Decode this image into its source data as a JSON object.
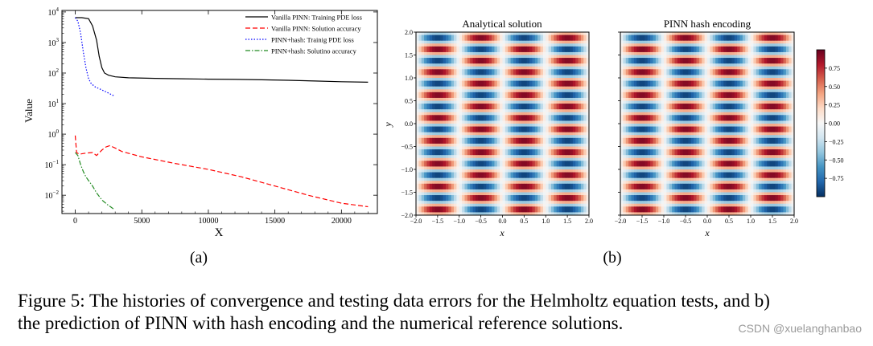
{
  "chart_data": [
    {
      "type": "line",
      "panel": "(a)",
      "xlabel": "X",
      "ylabel": "Value",
      "yscale": "log",
      "xlim": [
        -1000,
        22700
      ],
      "ylim_exponents": [
        -2.6,
        4.05
      ],
      "x_ticks": [
        0,
        5000,
        10000,
        15000,
        20000
      ],
      "x_tick_labels": [
        "0",
        "5000",
        "10000",
        "15000",
        "20000"
      ],
      "y_tick_exponents": [
        -2,
        -1,
        0,
        1,
        2,
        3,
        4
      ],
      "legend_position": "top-right",
      "series": [
        {
          "name": "Vanilla PINN: Training PDE loss",
          "color": "#000000",
          "style": "solid",
          "x": [
            0,
            500,
            1000,
            1300,
            1600,
            1800,
            2000,
            2200,
            2500,
            3000,
            4000,
            6000,
            8000,
            10000,
            12000,
            14000,
            16000,
            18000,
            20000,
            22000
          ],
          "y": [
            6500,
            6500,
            6000,
            3500,
            1200,
            350,
            150,
            100,
            85,
            75,
            70,
            67,
            65,
            63,
            62,
            60,
            58,
            55,
            52,
            50
          ]
        },
        {
          "name": "Vanilla PINN: Solution accuracy",
          "color": "#ff0000",
          "style": "dashed",
          "x": [
            0,
            100,
            300,
            800,
            1300,
            1600,
            2000,
            2300,
            2600,
            3000,
            3500,
            5000,
            7500,
            10000,
            12500,
            15000,
            17500,
            20000,
            22000
          ],
          "y": [
            0.9,
            0.25,
            0.22,
            0.24,
            0.25,
            0.2,
            0.3,
            0.38,
            0.42,
            0.35,
            0.27,
            0.18,
            0.11,
            0.07,
            0.04,
            0.02,
            0.01,
            0.0055,
            0.0042
          ]
        },
        {
          "name": "PINN+hash: Trainig PDE loss",
          "color": "#0000ff",
          "style": "dotted",
          "x": [
            0,
            200,
            400,
            600,
            800,
            1000,
            1200,
            1500,
            2000,
            2500,
            2900
          ],
          "y": [
            6500,
            5000,
            2000,
            500,
            150,
            65,
            45,
            35,
            28,
            22,
            18
          ]
        },
        {
          "name": "PINN+hash: Solutino accuracy",
          "color": "#228b22",
          "style": "dashdot",
          "x": [
            0,
            200,
            400,
            600,
            800,
            1000,
            1300,
            1600,
            2000,
            2400,
            2900
          ],
          "y": [
            0.25,
            0.2,
            0.1,
            0.06,
            0.04,
            0.03,
            0.02,
            0.012,
            0.007,
            0.005,
            0.0035
          ]
        }
      ]
    },
    {
      "type": "heatmap",
      "panel": "(b)",
      "title": "Analytical solution",
      "xlabel": "x",
      "ylabel": "y",
      "xlim": [
        -2.0,
        2.0
      ],
      "ylim": [
        -2.0,
        2.0
      ],
      "x_tick_labels": [
        "−2.0",
        "−1.5",
        "−1.0",
        "−0.5",
        "0.0",
        "0.5",
        "1.0",
        "1.5",
        "2.0"
      ],
      "y_tick_labels": [
        "2.0",
        "1.5",
        "1.0",
        "0.5",
        "0.0",
        "−0.5",
        "−1.0",
        "−1.5",
        "−2.0"
      ],
      "function": "sin(pi*x)*sin(4*pi*y)",
      "kx": 1,
      "ky": 4
    },
    {
      "type": "heatmap",
      "panel": "(b)",
      "title": "PINN hash encoding",
      "xlabel": "x",
      "xlim": [
        -2.0,
        2.0
      ],
      "ylim": [
        -2.0,
        2.0
      ],
      "x_tick_labels": [
        "−2.0",
        "−1.5",
        "−1.0",
        "−0.5",
        "0.0",
        "0.5",
        "1.0",
        "1.5",
        "2.0"
      ],
      "function": "sin(pi*x)*sin(4*pi*y)",
      "kx": 1,
      "ky": 4
    },
    {
      "type": "colorbar",
      "colormap": "RdBu_r",
      "range": [
        -1.0,
        1.0
      ],
      "tick_values": [
        0.75,
        0.5,
        0.25,
        0.0,
        -0.25,
        -0.5,
        -0.75
      ],
      "tick_labels": [
        "0.75",
        "0.50",
        "0.25",
        "0.00",
        "−0.25",
        "−0.50",
        "−0.75"
      ]
    }
  ],
  "colors": {
    "cmap_low": "#053061",
    "cmap_mid": "#f7f7f7",
    "cmap_high": "#67001f"
  },
  "labels": {
    "panel_a": "(a)",
    "panel_b": "(b)"
  },
  "caption": {
    "line1": "Figure 5: The histories of convergence and testing data errors for the Helmholtz equation tests, and b)",
    "line2": "the prediction of PINN with hash encoding and the numerical reference solutions."
  },
  "watermark": "CSDN @xuelanghanbao"
}
